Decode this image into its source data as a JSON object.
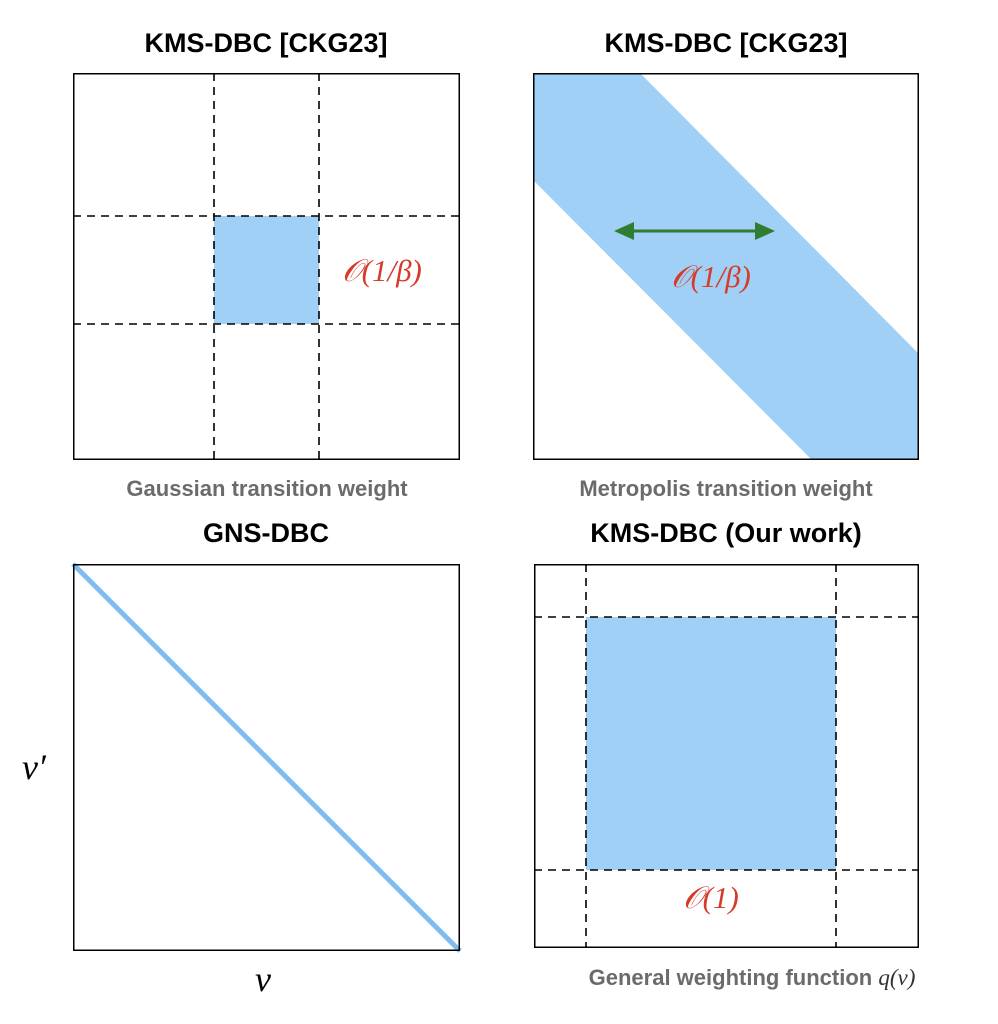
{
  "panels": [
    {
      "title": "KMS-DBC [CKG23]",
      "caption": "Gaussian transition weight",
      "order_label": "𝒪(1/β)"
    },
    {
      "title": "KMS-DBC [CKG23]",
      "caption": "Metropolis transition weight",
      "order_label": "𝒪(1/β)"
    },
    {
      "title": "GNS-DBC",
      "x_axis_label": "ν",
      "y_axis_label": "ν′"
    },
    {
      "title": "KMS-DBC (Our work)",
      "caption": "General weighting function",
      "caption_math": "q(ν)",
      "order_label": "𝒪(1)"
    }
  ],
  "colors": {
    "fill": "#a0d0f5",
    "diagonal_line": "#7fbcef",
    "arrow": "#2e7d32",
    "order_label": "#d63b2a",
    "caption": "#6b6b6b"
  }
}
